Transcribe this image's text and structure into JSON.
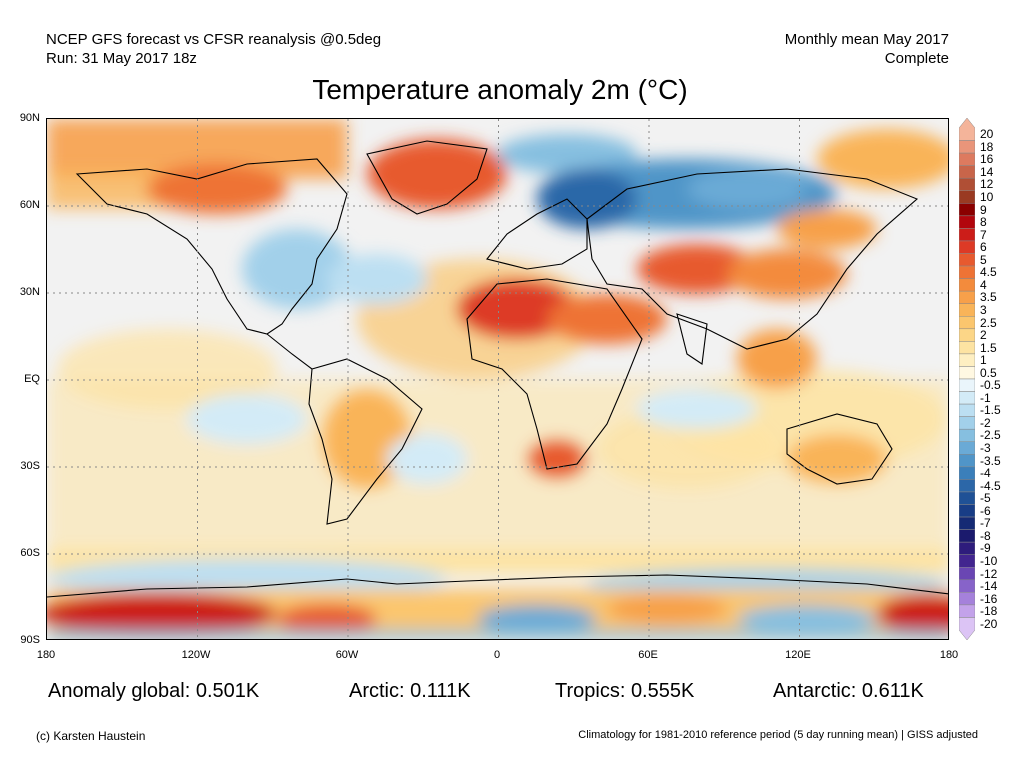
{
  "header": {
    "left_line1": "NCEP GFS forecast vs CFSR reanalysis @0.5deg",
    "left_line2": "Run: 31 May 2017 18z",
    "right_line1": "Monthly mean May 2017",
    "right_line2": "Complete"
  },
  "title": "Temperature anomaly 2m (°C)",
  "lat_labels": [
    "90N",
    "60N",
    "30N",
    "EQ",
    "30S",
    "60S",
    "90S"
  ],
  "lon_labels": [
    "180",
    "120W",
    "60W",
    "0",
    "60E",
    "120E",
    "180"
  ],
  "colorbar": {
    "labels": [
      "20",
      "18",
      "16",
      "14",
      "12",
      "10",
      "9",
      "8",
      "7",
      "6",
      "5",
      "4.5",
      "4",
      "3.5",
      "3",
      "2.5",
      "2",
      "1.5",
      "1",
      "0.5",
      "-0.5",
      "-1",
      "-1.5",
      "-2",
      "-2.5",
      "-3",
      "-3.5",
      "-4",
      "-4.5",
      "-5",
      "-6",
      "-7",
      "-8",
      "-9",
      "-10",
      "-12",
      "-14",
      "-16",
      "-18",
      "-20"
    ],
    "colors": [
      "#f4b49a",
      "#e9957a",
      "#dd7a5f",
      "#c8654a",
      "#b04f35",
      "#9a3a22",
      "#8b0000",
      "#b2060d",
      "#cc1d19",
      "#dd3a26",
      "#e75a2f",
      "#ee7335",
      "#f38b3c",
      "#f7a04a",
      "#f9b459",
      "#fbc66e",
      "#fcd687",
      "#fde3a2",
      "#feefc2",
      "#fff8e2",
      "#eaf5fb",
      "#d3ebf7",
      "#bcdff2",
      "#a2d0ea",
      "#86bfe0",
      "#6aaad6",
      "#5095c8",
      "#3b7fba",
      "#2c67a8",
      "#1f5196",
      "#183d86",
      "#152a74",
      "#1b1a6d",
      "#2e1c7c",
      "#42258f",
      "#6a46b3",
      "#8763c9",
      "#a581db",
      "#c3a2ea",
      "#dcc4f5"
    ]
  },
  "stats": {
    "global": "Anomaly global: 0.501K",
    "arctic": "Arctic: 0.111K",
    "tropics": "Tropics: 0.555K",
    "antarctic": "Antarctic: 0.611K"
  },
  "footer": {
    "left": "(c) Karsten Haustein",
    "right": "Climatology for 1981-2010 reference period (5 day running mean) | GISS adjusted"
  }
}
